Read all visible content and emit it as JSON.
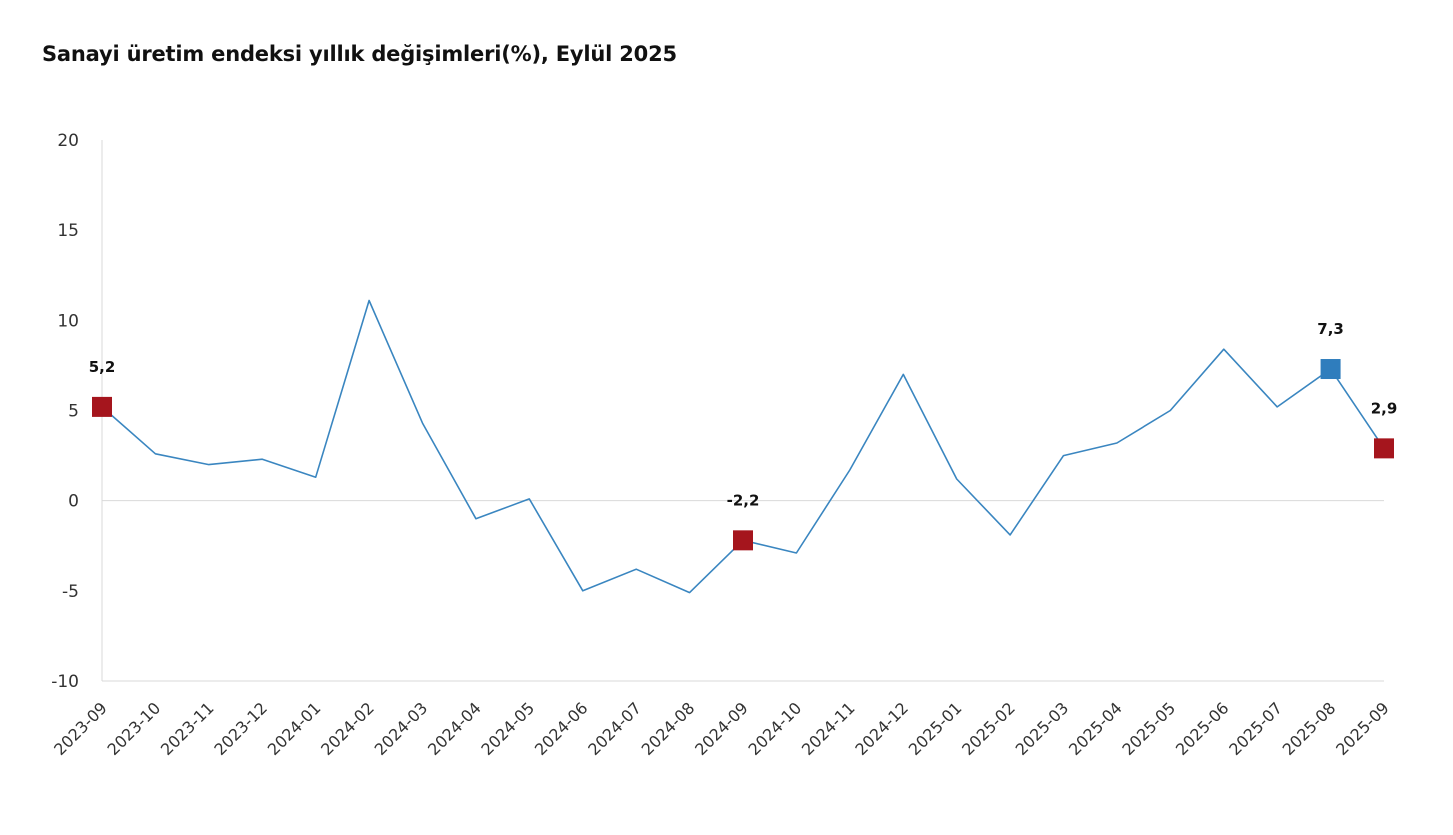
{
  "chart_data": {
    "type": "line",
    "title": "Sanayi üretim endeksi yıllık değişimleri(%), Eylül 2025",
    "xlabel": "",
    "ylabel": "",
    "ylim": [
      -10,
      20
    ],
    "yticks": [
      20,
      15,
      10,
      5,
      0,
      -5,
      -10
    ],
    "grid": false,
    "legend": "none",
    "categories": [
      "2023-09",
      "2023-10",
      "2023-11",
      "2023-12",
      "2024-01",
      "2024-02",
      "2024-03",
      "2024-04",
      "2024-05",
      "2024-06",
      "2024-07",
      "2024-08",
      "2024-09",
      "2024-10",
      "2024-11",
      "2024-12",
      "2025-01",
      "2025-02",
      "2025-03",
      "2025-04",
      "2025-05",
      "2025-06",
      "2025-07",
      "2025-08",
      "2025-09"
    ],
    "series": [
      {
        "values": [
          5.2,
          2.6,
          2.0,
          2.3,
          1.3,
          11.1,
          4.3,
          -1.0,
          0.1,
          -5.0,
          -3.8,
          -5.1,
          -2.2,
          -2.9,
          1.7,
          7.0,
          1.2,
          -1.9,
          2.5,
          3.2,
          5.0,
          8.4,
          5.2,
          7.3,
          2.9
        ],
        "color": "#3a86c0"
      }
    ],
    "highlights": [
      {
        "index": 0,
        "label": "5,2",
        "color": "#a5151d",
        "label_pos": "above"
      },
      {
        "index": 12,
        "label": "-2,2",
        "color": "#a5151d",
        "label_pos": "above"
      },
      {
        "index": 23,
        "label": "7,3",
        "color": "#2f7dbd",
        "label_pos": "above"
      },
      {
        "index": 24,
        "label": "2,9",
        "color": "#a5151d",
        "label_pos": "above"
      }
    ]
  }
}
